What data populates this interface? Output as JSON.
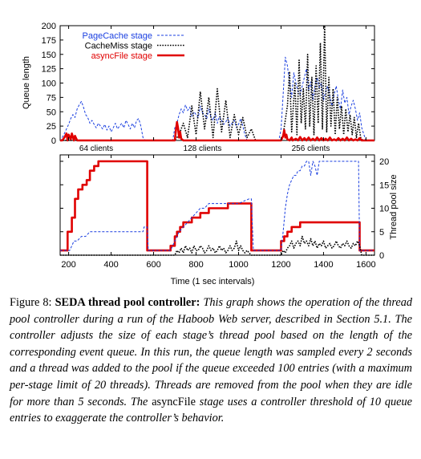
{
  "chart_data": [
    {
      "type": "line",
      "ylabel": "Queue length",
      "xlim": [
        160,
        1640
      ],
      "ylim": [
        0,
        200
      ],
      "yticks": [
        0,
        25,
        50,
        75,
        100,
        125,
        150,
        175,
        200
      ],
      "legend_position": "top-left",
      "grid": false,
      "annotations": [
        {
          "text": "64 clients",
          "x": 330
        },
        {
          "text": "128 clients",
          "x": 830
        },
        {
          "text": "256 clients",
          "x": 1340
        }
      ],
      "series": [
        {
          "name": "PageCache stage",
          "color": "#1a3fe0",
          "style": "dashed",
          "x": [
            150,
            165,
            170,
            180,
            190,
            200,
            210,
            220,
            230,
            240,
            250,
            260,
            270,
            280,
            290,
            300,
            310,
            320,
            330,
            340,
            350,
            360,
            370,
            380,
            390,
            400,
            410,
            420,
            430,
            440,
            450,
            460,
            470,
            480,
            490,
            500,
            510,
            520,
            530,
            540,
            550,
            560,
            570,
            580,
            590,
            600,
            610,
            620,
            630,
            640,
            650,
            660,
            670,
            680,
            690,
            700,
            710,
            720,
            730,
            740,
            750,
            760,
            770,
            780,
            790,
            800,
            810,
            820,
            830,
            840,
            850,
            860,
            870,
            880,
            890,
            900,
            910,
            920,
            930,
            940,
            950,
            960,
            970,
            980,
            990,
            1000,
            1010,
            1020,
            1030,
            1040,
            1050,
            1060,
            1070,
            1080,
            1090,
            1100,
            1110,
            1120,
            1130,
            1140,
            1150,
            1160,
            1170,
            1180,
            1190,
            1200,
            1210,
            1220,
            1230,
            1240,
            1250,
            1260,
            1270,
            1280,
            1290,
            1300,
            1310,
            1320,
            1330,
            1340,
            1350,
            1360,
            1370,
            1380,
            1390,
            1400,
            1410,
            1420,
            1430,
            1440,
            1450,
            1460,
            1470,
            1480,
            1490,
            1500,
            1510,
            1520,
            1530,
            1540,
            1550,
            1560,
            1570,
            1580,
            1590,
            1600,
            1620,
            1640
          ],
          "y": [
            0,
            0,
            5,
            12,
            20,
            28,
            38,
            45,
            40,
            55,
            62,
            68,
            58,
            45,
            40,
            30,
            35,
            28,
            22,
            30,
            25,
            20,
            28,
            18,
            25,
            15,
            22,
            30,
            20,
            25,
            30,
            22,
            35,
            28,
            20,
            30,
            22,
            35,
            38,
            25,
            5,
            0,
            0,
            0,
            0,
            0,
            0,
            0,
            0,
            0,
            0,
            0,
            0,
            0,
            0,
            22,
            30,
            45,
            55,
            48,
            62,
            52,
            58,
            42,
            50,
            45,
            40,
            60,
            48,
            45,
            38,
            55,
            40,
            35,
            48,
            30,
            42,
            35,
            28,
            32,
            40,
            25,
            30,
            35,
            22,
            28,
            38,
            25,
            10,
            0,
            0,
            0,
            0,
            0,
            0,
            0,
            0,
            0,
            0,
            0,
            0,
            0,
            0,
            0,
            0,
            20,
            80,
            145,
            130,
            100,
            75,
            118,
            100,
            85,
            80,
            95,
            110,
            125,
            88,
            102,
            70,
            95,
            110,
            92,
            100,
            70,
            85,
            95,
            75,
            60,
            80,
            95,
            70,
            55,
            88,
            65,
            75,
            45,
            60,
            70,
            55,
            35,
            48,
            22,
            10,
            0,
            0,
            0
          ]
        },
        {
          "name": "CacheMiss stage",
          "color": "#000000",
          "style": "dotted",
          "x": [
            150,
            560,
            575,
            700,
            720,
            740,
            760,
            780,
            800,
            820,
            840,
            860,
            880,
            900,
            920,
            940,
            960,
            980,
            1000,
            1020,
            1040,
            1060,
            1080,
            1200,
            1210,
            1230,
            1240,
            1250,
            1265,
            1275,
            1285,
            1295,
            1305,
            1315,
            1325,
            1335,
            1345,
            1355,
            1365,
            1375,
            1385,
            1395,
            1405,
            1415,
            1425,
            1435,
            1445,
            1455,
            1465,
            1475,
            1485,
            1495,
            1505,
            1515,
            1525,
            1535,
            1545,
            1555,
            1565,
            1575,
            1585,
            1640
          ],
          "y": [
            0,
            0,
            0,
            0,
            10,
            30,
            5,
            60,
            10,
            85,
            20,
            75,
            5,
            90,
            15,
            70,
            5,
            45,
            10,
            40,
            5,
            20,
            0,
            0,
            10,
            60,
            120,
            15,
            100,
            10,
            140,
            30,
            90,
            20,
            150,
            25,
            110,
            10,
            130,
            30,
            170,
            20,
            200,
            15,
            110,
            25,
            90,
            10,
            75,
            20,
            60,
            10,
            55,
            15,
            45,
            10,
            40,
            5,
            30,
            5,
            0,
            0
          ]
        },
        {
          "name": "asyncFile stage",
          "color": "#e00000",
          "style": "solid",
          "x": [
            150,
            170,
            180,
            190,
            195,
            200,
            210,
            215,
            225,
            230,
            240,
            700,
            705,
            710,
            715,
            720,
            725,
            730,
            740,
            1200,
            1210,
            1215,
            1220,
            1225,
            1230,
            1240,
            1250,
            1255,
            1270,
            1280,
            1290,
            1300,
            1310,
            1320,
            1330,
            1340,
            1350,
            1360,
            1370,
            1380,
            1390,
            1400,
            1410,
            1420,
            1430,
            1440,
            1450,
            1460,
            1470,
            1480,
            1490,
            1500,
            1510,
            1520,
            1530,
            1540,
            1550,
            1560,
            1570,
            1580,
            1590,
            1640
          ],
          "y": [
            0,
            0,
            5,
            12,
            0,
            10,
            2,
            12,
            0,
            8,
            0,
            0,
            18,
            32,
            22,
            5,
            15,
            3,
            0,
            0,
            8,
            18,
            5,
            10,
            2,
            0,
            5,
            0,
            3,
            0,
            6,
            0,
            4,
            0,
            5,
            0,
            3,
            0,
            5,
            0,
            4,
            0,
            3,
            0,
            5,
            0,
            2,
            0,
            4,
            0,
            3,
            0,
            5,
            0,
            3,
            0,
            2,
            0,
            4,
            0,
            0,
            0
          ]
        }
      ]
    },
    {
      "type": "line",
      "xlabel": "Time (1 sec intervals)",
      "ylabel": "Thread pool size",
      "y_axis_position": "right",
      "xlim": [
        160,
        1640
      ],
      "ylim": [
        0,
        20
      ],
      "xticks": [
        200,
        400,
        600,
        800,
        1000,
        1200,
        1400,
        1600
      ],
      "yticks": [
        0,
        5,
        10,
        15,
        20
      ],
      "grid": false,
      "series": [
        {
          "name": "asyncFile stage",
          "color": "#e00000",
          "style": "solid",
          "x": [
            160,
            195,
            195,
            215,
            215,
            230,
            230,
            245,
            245,
            265,
            265,
            285,
            285,
            300,
            300,
            320,
            320,
            340,
            340,
            555,
            555,
            570,
            570,
            680,
            680,
            700,
            700,
            710,
            710,
            725,
            725,
            740,
            740,
            780,
            780,
            820,
            820,
            860,
            860,
            900,
            900,
            950,
            950,
            1000,
            1000,
            1060,
            1060,
            1150,
            1150,
            1200,
            1200,
            1215,
            1215,
            1230,
            1230,
            1250,
            1250,
            1270,
            1270,
            1290,
            1290,
            1330,
            1330,
            1370,
            1370,
            1400,
            1400,
            1570,
            1570,
            1640
          ],
          "y": [
            1,
            1,
            5,
            5,
            8,
            8,
            12,
            12,
            14,
            14,
            15,
            15,
            16,
            16,
            18,
            18,
            19,
            19,
            20,
            20,
            20,
            20,
            1,
            1,
            2,
            2,
            4,
            4,
            5,
            5,
            6,
            6,
            7,
            7,
            8,
            8,
            9,
            9,
            10,
            10,
            10,
            10,
            11,
            11,
            11,
            11,
            1,
            1,
            1,
            1,
            3,
            3,
            4,
            4,
            5,
            5,
            6,
            6,
            6,
            6,
            7,
            7,
            7,
            7,
            7,
            7,
            7,
            7,
            1,
            1
          ]
        },
        {
          "name": "PageCache stage",
          "color": "#1a3fe0",
          "style": "dashed",
          "x": [
            160,
            195,
            205,
            215,
            225,
            240,
            260,
            280,
            300,
            320,
            340,
            400,
            550,
            555,
            570,
            575,
            680,
            700,
            720,
            740,
            760,
            780,
            800,
            820,
            840,
            860,
            900,
            950,
            1000,
            1050,
            1060,
            1070,
            1200,
            1210,
            1220,
            1230,
            1240,
            1250,
            1260,
            1270,
            1280,
            1290,
            1300,
            1310,
            1320,
            1330,
            1340,
            1350,
            1360,
            1370,
            1380,
            1400,
            1450,
            1500,
            1550,
            1565,
            1570,
            1640
          ],
          "y": [
            1,
            1,
            1,
            2,
            3,
            3,
            4,
            4,
            5,
            5,
            5,
            5,
            5,
            6,
            6,
            1,
            1,
            3,
            5,
            6,
            7,
            8,
            9,
            10,
            10,
            11,
            11,
            11,
            11,
            12,
            12,
            1,
            1,
            5,
            10,
            13,
            15,
            16,
            17,
            17,
            18,
            18,
            19,
            19,
            20,
            20,
            17,
            20,
            19,
            17,
            20,
            20,
            20,
            20,
            20,
            20,
            1,
            1
          ]
        },
        {
          "name": "CacheMiss stage",
          "color": "#000000",
          "style": "dotted",
          "x": [
            150,
            700,
            710,
            720,
            730,
            740,
            750,
            760,
            770,
            780,
            790,
            800,
            810,
            820,
            830,
            840,
            850,
            860,
            870,
            880,
            890,
            900,
            910,
            920,
            930,
            940,
            950,
            960,
            970,
            980,
            990,
            1000,
            1010,
            1020,
            1030,
            1040,
            1050,
            1060,
            1200,
            1210,
            1220,
            1230,
            1240,
            1250,
            1260,
            1270,
            1280,
            1290,
            1300,
            1310,
            1320,
            1330,
            1340,
            1350,
            1360,
            1370,
            1380,
            1390,
            1400,
            1410,
            1420,
            1430,
            1440,
            1450,
            1460,
            1470,
            1480,
            1490,
            1500,
            1510,
            1520,
            1530,
            1540,
            1550,
            1560,
            1570,
            1580,
            1640
          ],
          "y": [
            0,
            0,
            1,
            0.5,
            1.5,
            0.5,
            2,
            1,
            1.5,
            0.5,
            2,
            1,
            1,
            2,
            1.5,
            0.5,
            1,
            2,
            1,
            1.5,
            0.5,
            1,
            2,
            1,
            1.5,
            0.5,
            1,
            2,
            1,
            1.5,
            3,
            1,
            2,
            1,
            0.5,
            1,
            0.5,
            0,
            0,
            1,
            0.5,
            1.5,
            2,
            3,
            1.5,
            2.5,
            3,
            2,
            4,
            2.5,
            3,
            2,
            3.5,
            2,
            3,
            1.5,
            2.5,
            2,
            3,
            1.5,
            2,
            2.5,
            1.5,
            2,
            3,
            2,
            1.5,
            2.5,
            2,
            3,
            2,
            1.5,
            2.5,
            2,
            3,
            2,
            0,
            0
          ]
        }
      ]
    }
  ],
  "caption": {
    "label": "Figure 8:",
    "title": "SEDA thread pool controller:",
    "body_1": "This graph shows the operation of the thread pool controller during a run of the Haboob Web server, described in Section 5.1. The controller adjusts the size of each stage’s thread pool based on the length of the corresponding event queue. In this run, the queue length was sampled every 2 seconds and a thread was added to the pool if the queue exceeded 100 entries (with a maximum per-stage limit of 20 threads). Threads are removed from the pool when they are idle for more than 5 seconds. The",
    "stage_name": "asyncFile",
    "body_2": "stage uses a controller threshold of 10 queue entries to exaggerate the controller’s behavior."
  }
}
